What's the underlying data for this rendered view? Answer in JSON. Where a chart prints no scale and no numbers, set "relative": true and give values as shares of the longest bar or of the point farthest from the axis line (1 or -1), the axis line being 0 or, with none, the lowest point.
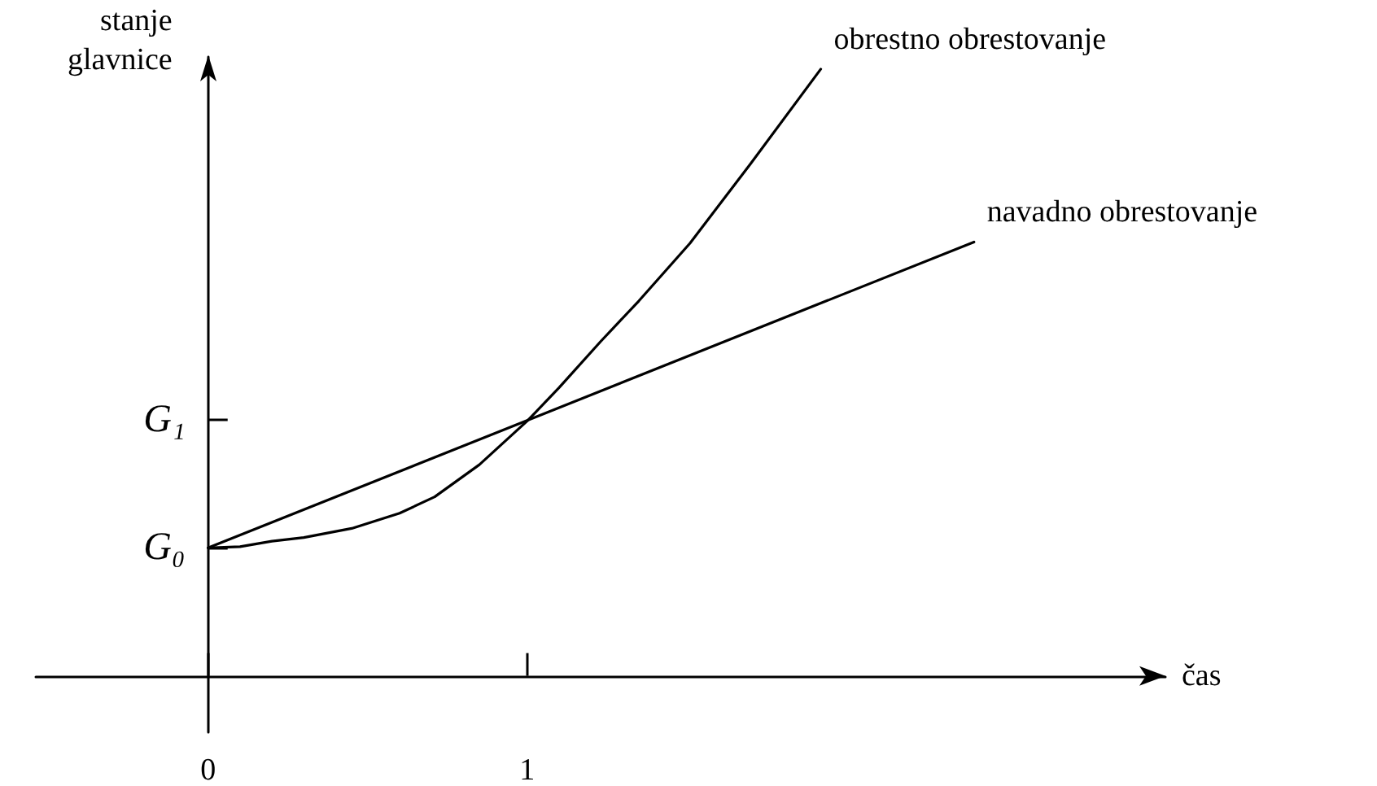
{
  "chart_data": {
    "type": "line",
    "xlabel": "čas",
    "ylabel": "stanje\nglavnice",
    "relative": true,
    "xlim": [
      -0.54,
      3.0
    ],
    "xticks": [
      0,
      1
    ],
    "annotations": [
      "G₀",
      "G₁"
    ],
    "marker": "none",
    "line_style": "solid",
    "series": [
      {
        "name": "obrestno obrestovanje",
        "color": "#000000",
        "x": [
          0,
          0.1,
          0.2,
          0.3,
          0.45,
          0.6,
          0.71,
          0.85,
          1,
          1.1,
          1.23,
          1.35,
          1.51,
          1.7,
          1.92
        ],
        "values": [
          0.211,
          0.213,
          0.222,
          0.228,
          0.243,
          0.268,
          0.295,
          0.348,
          0.42,
          0.475,
          0.551,
          0.618,
          0.713,
          0.844,
          1
        ]
      },
      {
        "name": "navadno obrestovanje",
        "color": "#000000",
        "x": [
          0,
          2.4
        ],
        "values": [
          0.211,
          0.715
        ]
      }
    ]
  }
}
